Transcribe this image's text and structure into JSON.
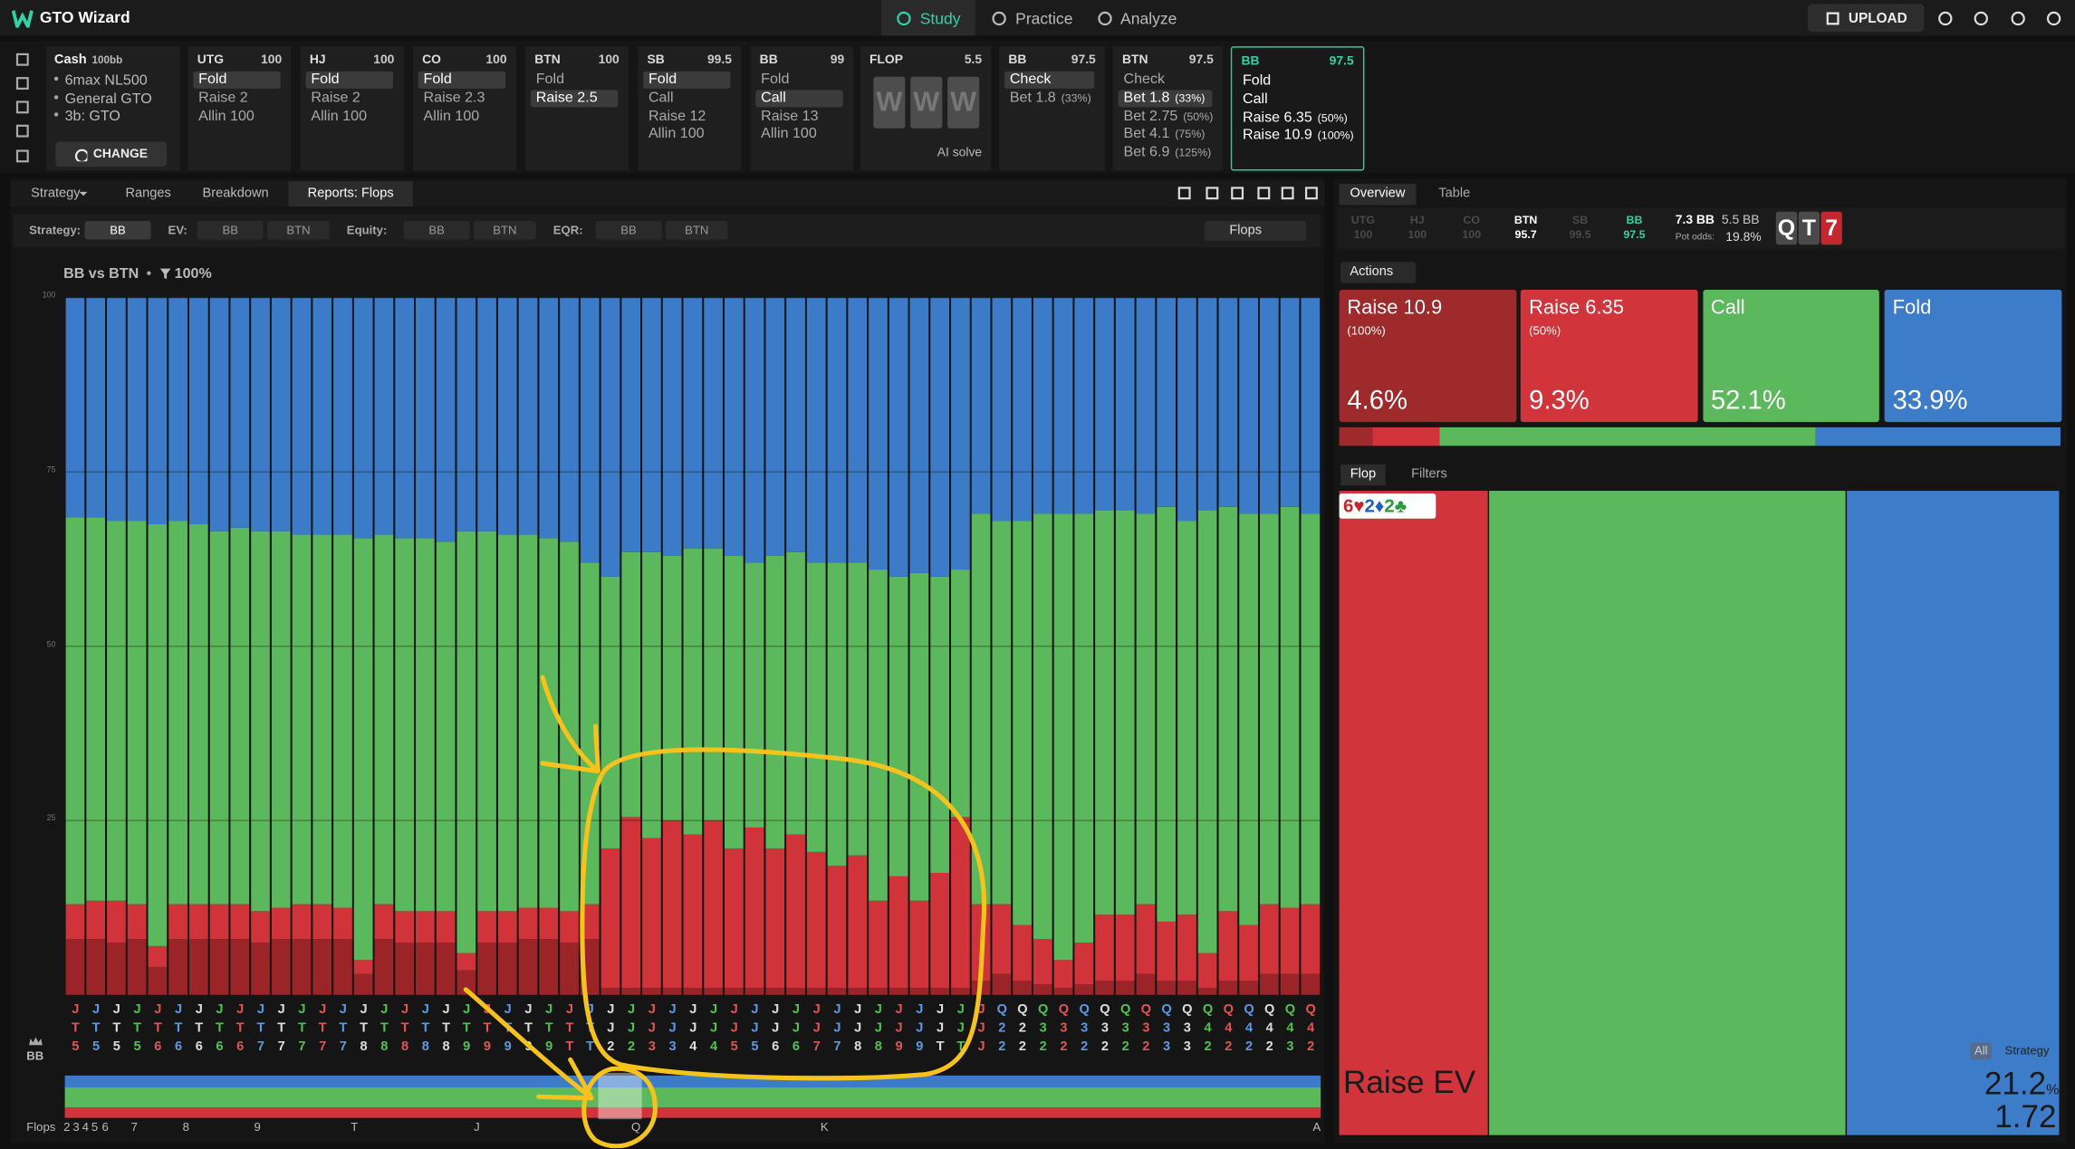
{
  "header": {
    "brand": "GTO Wizard",
    "tabs": [
      "Study",
      "Practice",
      "Analyze"
    ],
    "active_tab": 0,
    "upload": "UPLOAD"
  },
  "game": {
    "title": "Cash",
    "stack": "100bb",
    "items": [
      "6max NL500",
      "General GTO",
      "3b: GTO"
    ],
    "button": "CHANGE"
  },
  "preflop": [
    {
      "pos": "UTG",
      "stack": "100",
      "actions": [
        {
          "label": "Fold",
          "selected": true
        },
        {
          "label": "Raise 2"
        },
        {
          "label": "Allin 100"
        }
      ]
    },
    {
      "pos": "HJ",
      "stack": "100",
      "actions": [
        {
          "label": "Fold",
          "selected": true
        },
        {
          "label": "Raise 2"
        },
        {
          "label": "Allin 100"
        }
      ]
    },
    {
      "pos": "CO",
      "stack": "100",
      "actions": [
        {
          "label": "Fold",
          "selected": true
        },
        {
          "label": "Raise 2.3"
        },
        {
          "label": "Allin 100"
        }
      ]
    },
    {
      "pos": "BTN",
      "stack": "100",
      "actions": [
        {
          "label": "Fold"
        },
        {
          "label": "Raise 2.5",
          "selected": true
        }
      ]
    },
    {
      "pos": "SB",
      "stack": "99.5",
      "actions": [
        {
          "label": "Fold",
          "selected": true
        },
        {
          "label": "Call"
        },
        {
          "label": "Raise 12"
        },
        {
          "label": "Allin 100"
        }
      ]
    },
    {
      "pos": "BB",
      "stack": "99",
      "actions": [
        {
          "label": "Fold"
        },
        {
          "label": "Call",
          "selected": true
        },
        {
          "label": "Raise 13"
        },
        {
          "label": "Allin 100"
        }
      ]
    }
  ],
  "flop": {
    "label": "FLOP",
    "pot": "5.5",
    "cards": [
      "W",
      "W",
      "W"
    ],
    "solve": "AI solve"
  },
  "postflop": [
    {
      "pos": "BB",
      "stack": "97.5",
      "actions": [
        {
          "label": "Check",
          "selected": true
        },
        {
          "label": "Bet 1.8",
          "size": "(33%)"
        }
      ]
    },
    {
      "pos": "BTN",
      "stack": "97.5",
      "actions": [
        {
          "label": "Check"
        },
        {
          "label": "Bet 1.8",
          "size": "(33%)",
          "selected": true
        },
        {
          "label": "Bet 2.75",
          "size": "(50%)"
        },
        {
          "label": "Bet 4.1",
          "size": "(75%)"
        },
        {
          "label": "Bet 6.9",
          "size": "(125%)"
        }
      ]
    },
    {
      "pos": "BB",
      "stack": "97.5",
      "active": true,
      "actions": [
        {
          "label": "Fold"
        },
        {
          "label": "Call"
        },
        {
          "label": "Raise 6.35",
          "size": "(50%)"
        },
        {
          "label": "Raise 10.9",
          "size": "(100%)"
        }
      ]
    }
  ],
  "tabs": {
    "items": [
      "Strategy",
      "Ranges",
      "Breakdown",
      "Reports: Flops"
    ],
    "selected": 3
  },
  "toolbar": {
    "groups": [
      {
        "label": "Strategy:",
        "buttons": [
          "BB"
        ]
      },
      {
        "label": "EV:",
        "buttons": [
          "BB",
          "BTN"
        ]
      },
      {
        "label": "Equity:",
        "buttons": [
          "BB",
          "BTN"
        ]
      },
      {
        "label": "EQR:",
        "buttons": [
          "BB",
          "BTN"
        ]
      }
    ],
    "sort": "Flops"
  },
  "minimap": {
    "label": "Flops",
    "ranks": [
      "2",
      "3",
      "4",
      "5",
      "6",
      "7",
      "8",
      "9",
      "T",
      "J",
      "Q",
      "K",
      "A"
    ]
  },
  "panel": {
    "tabs": [
      "Overview",
      "Table"
    ],
    "players": [
      {
        "pos": "UTG",
        "stack": "100",
        "state": "dim"
      },
      {
        "pos": "HJ",
        "stack": "100",
        "state": "dim"
      },
      {
        "pos": "CO",
        "stack": "100",
        "state": "dim"
      },
      {
        "pos": "BTN",
        "stack": "95.7",
        "state": "on"
      },
      {
        "pos": "SB",
        "stack": "99.5",
        "state": "dim"
      },
      {
        "pos": "BB",
        "stack": "97.5",
        "state": "hero"
      }
    ],
    "pot": "7.3 BB",
    "to_call": "5.5 BB",
    "pot_odds_label": "Pot odds:",
    "pot_odds": "19.8%",
    "board": [
      {
        "rank": "Q",
        "color": "#4a4a4a"
      },
      {
        "rank": "T",
        "color": "#4a4a4a"
      },
      {
        "rank": "7",
        "color": "#c4272d"
      }
    ],
    "actions_button": "Actions",
    "lower_tabs": [
      "Flop",
      "Filters"
    ]
  },
  "chart_data": [
    {
      "type": "stacked-bar",
      "title": "BB vs BTN",
      "filter": "100%",
      "row_label": "BB",
      "ylim": [
        0,
        100
      ],
      "yticks": [
        25,
        50,
        75,
        100
      ],
      "grid": true,
      "categories": [
        "JT5",
        "JT5",
        "JT5",
        "JT5",
        "JT6",
        "JT6",
        "JT6",
        "JT6",
        "JT6",
        "JT7",
        "JT7",
        "JT7",
        "JT7",
        "JT7",
        "JT8",
        "JT8",
        "JT8",
        "JT8",
        "JT8",
        "JT9",
        "JT9",
        "JT9",
        "JT9",
        "JT9",
        "JTT",
        "JTT",
        "JJ2",
        "JJ2",
        "JJ3",
        "JJ3",
        "JJ4",
        "JJ4",
        "JJ5",
        "JJ5",
        "JJ6",
        "JJ6",
        "JJ7",
        "JJ7",
        "JJ8",
        "JJ8",
        "JJ9",
        "JJ9",
        "JJT",
        "JJT",
        "JJJ",
        "Q22",
        "Q22",
        "Q32",
        "Q32",
        "Q32",
        "Q32",
        "Q32",
        "Q32",
        "Q33",
        "Q33",
        "Q42",
        "Q42",
        "Q42",
        "Q42",
        "Q43",
        "Q42"
      ],
      "series": [
        {
          "color": "#9b2428",
          "values": [
            8,
            8,
            7.5,
            8,
            4,
            8,
            8,
            8,
            8,
            7.5,
            8,
            8,
            8,
            8,
            3,
            8,
            7.5,
            7.5,
            7.5,
            3.5,
            7.5,
            7.5,
            8,
            8,
            7.5,
            8,
            1,
            1,
            1,
            1,
            1,
            1,
            1,
            1,
            1,
            1,
            1,
            1,
            1,
            1,
            1,
            1,
            1,
            1,
            2,
            3,
            2,
            1.5,
            1,
            1.5,
            2,
            2,
            3,
            2,
            2,
            1,
            2,
            2,
            3,
            3,
            3
          ]
        },
        {
          "color": "#d1333a",
          "values": [
            5,
            5.5,
            6,
            5,
            3,
            5,
            5,
            5,
            5,
            4.5,
            4.5,
            5,
            5,
            4.5,
            2,
            5,
            4.5,
            4.5,
            4.5,
            2.5,
            4.5,
            4.5,
            4.5,
            4.5,
            4.5,
            5,
            20,
            24.5,
            21.5,
            24,
            22,
            24,
            20,
            23,
            20,
            22,
            19.5,
            17.5,
            19,
            12.5,
            16,
            12.5,
            16.5,
            24.5,
            11,
            10,
            8,
            6.5,
            4,
            6,
            9.5,
            9.5,
            10,
            8.5,
            9.5,
            5,
            10,
            8,
            10,
            9.5,
            10
          ]
        },
        {
          "color": "#5cb85c",
          "values": [
            55.5,
            55,
            54.5,
            55,
            60.5,
            55,
            54.5,
            53.5,
            54,
            54.5,
            54,
            53,
            53,
            53.5,
            60.5,
            53,
            53.5,
            53.5,
            53,
            60.5,
            54.5,
            54,
            53.5,
            53,
            53,
            49,
            39,
            38,
            41,
            38,
            41,
            39,
            42,
            38,
            42,
            40.5,
            41.5,
            43.5,
            42,
            47.5,
            43,
            47,
            42.5,
            35.5,
            56,
            55,
            58,
            61,
            64,
            61.5,
            58,
            58,
            56,
            59.5,
            56.5,
            63.5,
            58,
            59,
            56,
            57.5,
            56
          ]
        },
        {
          "color": "#3b7bc8",
          "values": [
            31.5,
            31.5,
            32,
            32,
            32.5,
            32,
            32.5,
            33.5,
            33,
            33.5,
            33.5,
            34,
            34,
            34,
            34.5,
            34,
            34.5,
            34.5,
            35,
            33.5,
            33.5,
            34,
            34,
            34.5,
            35,
            38,
            40,
            36.5,
            36.5,
            37,
            36,
            36,
            37,
            38,
            37,
            36.5,
            38,
            38,
            38,
            39,
            40,
            39.5,
            40,
            39,
            31,
            32,
            32,
            31,
            31,
            31,
            30.5,
            30.5,
            31,
            30,
            32,
            30.5,
            30,
            31,
            31,
            30,
            31
          ]
        }
      ]
    },
    {
      "type": "strategy-summary",
      "series": [
        {
          "name": "Raise 10.9",
          "size": "(100%)",
          "color": "#9e2a2c",
          "values": [
            4.6
          ],
          "value_labels": [
            "4.6%"
          ]
        },
        {
          "name": "Raise 6.35",
          "size": "(50%)",
          "color": "#d1343a",
          "values": [
            9.3
          ],
          "value_labels": [
            "9.3%"
          ]
        },
        {
          "name": "Call",
          "color": "#5cb85c",
          "values": [
            52.1
          ],
          "value_labels": [
            "52.1%"
          ]
        },
        {
          "name": "Fold",
          "color": "#3d7cc9",
          "values": [
            33.9
          ],
          "value_labels": [
            "33.9%"
          ]
        }
      ]
    },
    {
      "type": "treemap",
      "board": [
        {
          "text": "6♥",
          "color": "#c4272d"
        },
        {
          "text": "2♦",
          "color": "#1f5fc4"
        },
        {
          "text": "2♣",
          "color": "#2a9a3a"
        }
      ],
      "metric": "Raise EV",
      "toggle": [
        "All",
        "Strategy"
      ],
      "strategy_value": "21.2",
      "strategy_unit": "%",
      "ev": "1.72",
      "series": [
        {
          "color": "#d1343a",
          "values": [
            20.7
          ]
        },
        {
          "color": "#5cb85c",
          "values": [
            49.4
          ]
        },
        {
          "color": "#3d7cc9",
          "values": [
            29.5
          ]
        }
      ]
    }
  ]
}
